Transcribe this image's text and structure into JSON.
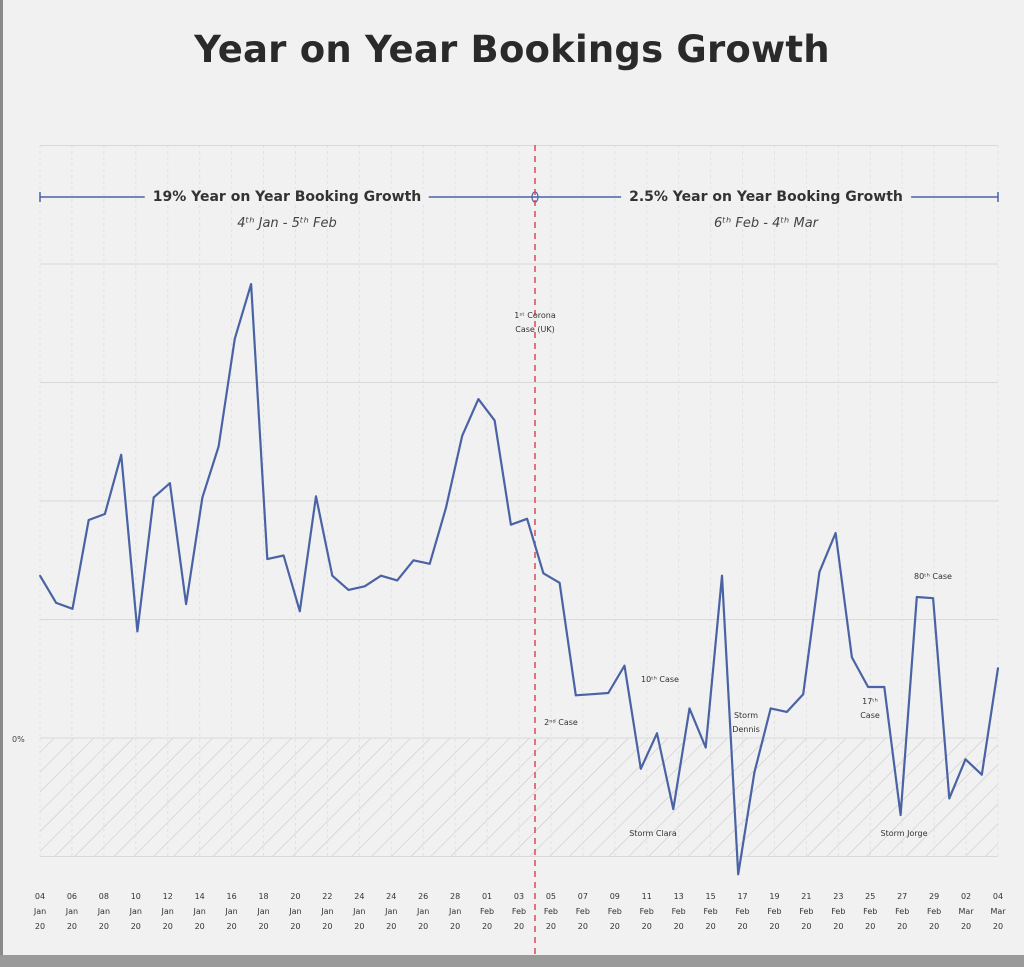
{
  "title": "Year on Year Bookings Growth",
  "colors": {
    "line": "#4a63a4",
    "divider": "#d94a5a",
    "grid": "#d9d9d9",
    "hatch": "#c9c2c4",
    "background": "#f1f1f1"
  },
  "periods": [
    {
      "label": "19% Year on Year Booking Growth",
      "dates": "4ᵗʰ Jan - 5ᵗʰ Feb"
    },
    {
      "label": "2.5% Year on Year Booking Growth",
      "dates": "6ᵗʰ Feb - 4ᵗʰ Mar"
    }
  ],
  "annotations": [
    {
      "text": "1ˢᵗ Corona\nCase (UK)",
      "x": "03 Feb 20"
    },
    {
      "text": "2ⁿᵈ Case",
      "x": "06 Feb 20"
    },
    {
      "text": "10ᵗʰ Case",
      "x": "12 Feb 20"
    },
    {
      "text": "Storm Clara",
      "x": "12 Feb 20"
    },
    {
      "text": "Storm\nDennis",
      "x": "17 Feb 20"
    },
    {
      "text": "17ᵗʰ\nCase",
      "x": "25 Feb 20"
    },
    {
      "text": "80ᵗʰ Case",
      "x": "29 Feb 20"
    },
    {
      "text": "Storm Jorge",
      "x": "28 Feb 20"
    }
  ],
  "chart_data": {
    "type": "line",
    "title": "Year on Year Bookings Growth",
    "xlabel": "",
    "ylabel": "",
    "y_ticks": [
      {
        "label": "0%",
        "value": 0
      }
    ],
    "ylim": [
      -1,
      5
    ],
    "grid": true,
    "divider_after": "03 Feb 20",
    "x_tick_labels": [
      [
        "04",
        "Jan",
        "20"
      ],
      [
        "06",
        "Jan",
        "20"
      ],
      [
        "08",
        "Jan",
        "20"
      ],
      [
        "10",
        "Jan",
        "20"
      ],
      [
        "12",
        "Jan",
        "20"
      ],
      [
        "14",
        "Jan",
        "20"
      ],
      [
        "16",
        "Jan",
        "20"
      ],
      [
        "18",
        "Jan",
        "20"
      ],
      [
        "20",
        "Jan",
        "20"
      ],
      [
        "22",
        "Jan",
        "20"
      ],
      [
        "24",
        "Jan",
        "20"
      ],
      [
        "24",
        "Jan",
        "20"
      ],
      [
        "26",
        "Jan",
        "20"
      ],
      [
        "28",
        "Jan",
        "20"
      ],
      [
        "01",
        "Feb",
        "20"
      ],
      [
        "03",
        "Feb",
        "20"
      ],
      [
        "05",
        "Feb",
        "20"
      ],
      [
        "07",
        "Feb",
        "20"
      ],
      [
        "09",
        "Feb",
        "20"
      ],
      [
        "11",
        "Feb",
        "20"
      ],
      [
        "13",
        "Feb",
        "20"
      ],
      [
        "15",
        "Feb",
        "20"
      ],
      [
        "17",
        "Feb",
        "20"
      ],
      [
        "19",
        "Feb",
        "20"
      ],
      [
        "21",
        "Feb",
        "20"
      ],
      [
        "23",
        "Feb",
        "20"
      ],
      [
        "25",
        "Feb",
        "20"
      ],
      [
        "27",
        "Feb",
        "20"
      ],
      [
        "29",
        "Feb",
        "20"
      ],
      [
        "02",
        "Mar",
        "20"
      ],
      [
        "04",
        "Mar",
        "20"
      ]
    ],
    "series": [
      {
        "values": [
          1.37,
          1.14,
          1.09,
          1.84,
          1.89,
          2.39,
          0.9,
          2.03,
          2.15,
          1.13,
          2.03,
          2.46,
          3.37,
          3.83,
          1.51,
          1.54,
          1.07,
          2.04,
          1.37,
          1.25,
          1.28,
          1.37,
          1.33,
          1.5,
          1.47,
          1.94,
          2.55,
          2.86,
          2.68,
          1.8,
          1.85,
          1.39,
          1.31,
          0.36,
          0.37,
          0.38,
          0.61,
          -0.26,
          0.04,
          -0.6,
          0.25,
          -0.08,
          1.37,
          -1.15,
          -0.29,
          0.25,
          0.22,
          0.37,
          1.4,
          1.73,
          0.68,
          0.43,
          0.43,
          -0.65,
          1.19,
          1.18,
          -0.51,
          -0.18,
          -0.31,
          0.59
        ]
      }
    ]
  }
}
